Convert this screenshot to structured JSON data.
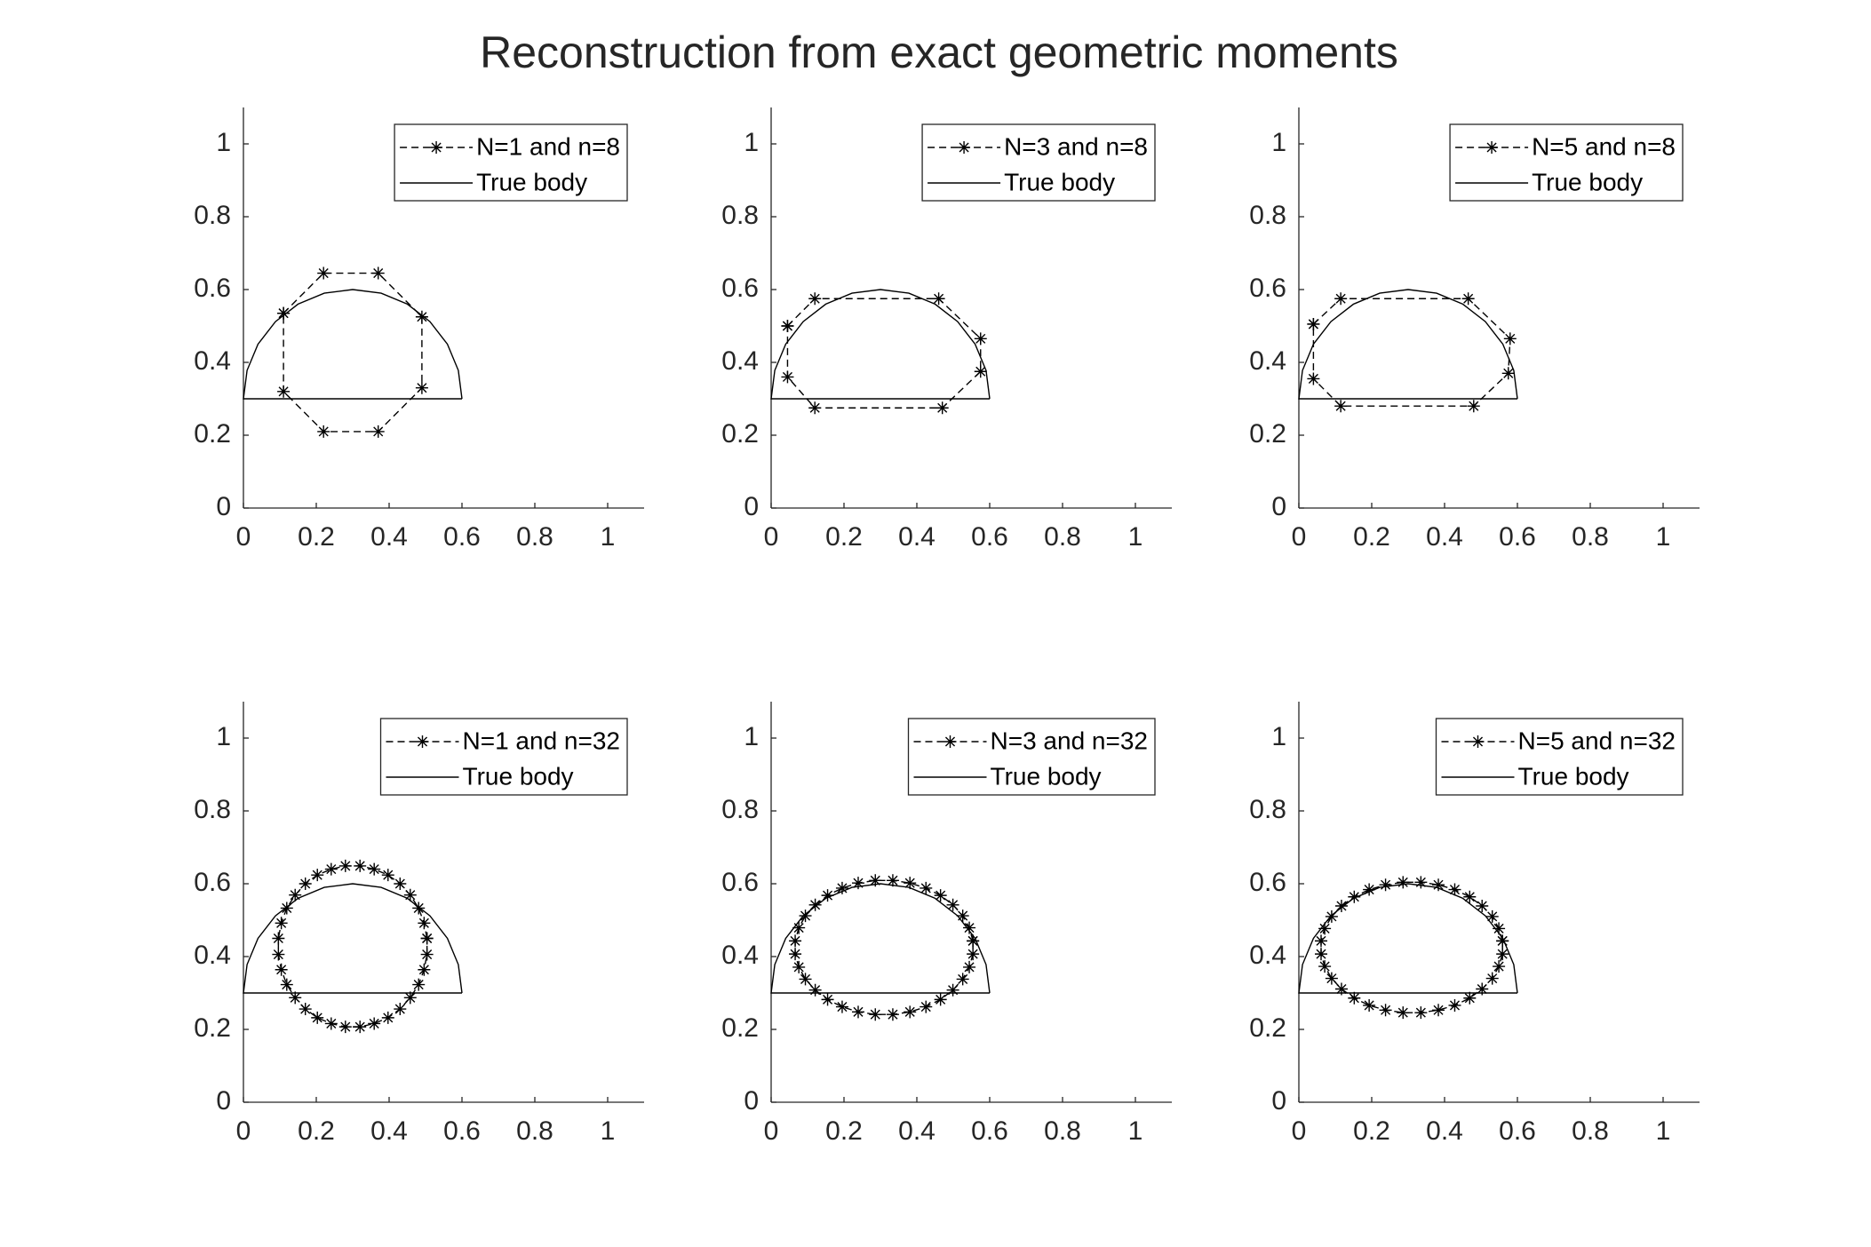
{
  "title": "Reconstruction from exact geometric moments",
  "chart_data": [
    {
      "type": "line",
      "xlim": [
        0,
        1.1
      ],
      "ylim": [
        0,
        1.1
      ],
      "xticks": [
        0,
        0.2,
        0.4,
        0.6,
        0.8,
        1
      ],
      "yticks": [
        0,
        0.2,
        0.4,
        0.6,
        0.8,
        1
      ],
      "legend": "northeast",
      "series": [
        {
          "name": "N=1 and n=8",
          "color": "#000000",
          "linestyle": "dashed",
          "marker": "*",
          "x": [
            0.11,
            0.22,
            0.37,
            0.49,
            0.49,
            0.37,
            0.22,
            0.11,
            0.11
          ],
          "y": [
            0.535,
            0.645,
            0.645,
            0.525,
            0.33,
            0.21,
            0.21,
            0.32,
            0.535
          ]
        },
        {
          "name": "True body",
          "color": "#000000",
          "linestyle": "solid",
          "x": [
            0.6,
            0.59,
            0.56,
            0.512,
            0.45,
            0.378,
            0.3,
            0.222,
            0.15,
            0.088,
            0.04,
            0.01,
            0,
            0.6
          ],
          "y": [
            0.3,
            0.378,
            0.45,
            0.512,
            0.56,
            0.59,
            0.6,
            0.59,
            0.56,
            0.512,
            0.45,
            0.378,
            0.3,
            0.3
          ]
        }
      ]
    },
    {
      "type": "line",
      "xlim": [
        0,
        1.1
      ],
      "ylim": [
        0,
        1.1
      ],
      "xticks": [
        0,
        0.2,
        0.4,
        0.6,
        0.8,
        1
      ],
      "yticks": [
        0,
        0.2,
        0.4,
        0.6,
        0.8,
        1
      ],
      "legend": "northeast",
      "series": [
        {
          "name": "N=3 and n=8",
          "color": "#000000",
          "linestyle": "dashed",
          "marker": "*",
          "x": [
            0.045,
            0.12,
            0.46,
            0.575,
            0.575,
            0.47,
            0.12,
            0.045,
            0.045
          ],
          "y": [
            0.5,
            0.575,
            0.575,
            0.465,
            0.375,
            0.275,
            0.275,
            0.36,
            0.5
          ]
        },
        {
          "name": "True body",
          "color": "#000000",
          "linestyle": "solid",
          "x": [
            0.6,
            0.59,
            0.56,
            0.512,
            0.45,
            0.378,
            0.3,
            0.222,
            0.15,
            0.088,
            0.04,
            0.01,
            0,
            0.6
          ],
          "y": [
            0.3,
            0.378,
            0.45,
            0.512,
            0.56,
            0.59,
            0.6,
            0.59,
            0.56,
            0.512,
            0.45,
            0.378,
            0.3,
            0.3
          ]
        }
      ]
    },
    {
      "type": "line",
      "xlim": [
        0,
        1.1
      ],
      "ylim": [
        0,
        1.1
      ],
      "xticks": [
        0,
        0.2,
        0.4,
        0.6,
        0.8,
        1
      ],
      "yticks": [
        0,
        0.2,
        0.4,
        0.6,
        0.8,
        1
      ],
      "legend": "northeast",
      "series": [
        {
          "name": "N=5 and n=8",
          "color": "#000000",
          "linestyle": "dashed",
          "marker": "*",
          "x": [
            0.04,
            0.115,
            0.465,
            0.58,
            0.575,
            0.48,
            0.115,
            0.04,
            0.04
          ],
          "y": [
            0.505,
            0.575,
            0.575,
            0.465,
            0.37,
            0.28,
            0.28,
            0.355,
            0.505
          ]
        },
        {
          "name": "True body",
          "color": "#000000",
          "linestyle": "solid",
          "x": [
            0.6,
            0.59,
            0.56,
            0.512,
            0.45,
            0.378,
            0.3,
            0.222,
            0.15,
            0.088,
            0.04,
            0.01,
            0,
            0.6
          ],
          "y": [
            0.3,
            0.378,
            0.45,
            0.512,
            0.56,
            0.59,
            0.6,
            0.59,
            0.56,
            0.512,
            0.45,
            0.378,
            0.3,
            0.3
          ]
        }
      ]
    },
    {
      "type": "line",
      "xlim": [
        0,
        1.1
      ],
      "ylim": [
        0,
        1.1
      ],
      "xticks": [
        0,
        0.2,
        0.4,
        0.6,
        0.8,
        1
      ],
      "yticks": [
        0,
        0.2,
        0.4,
        0.6,
        0.8,
        1
      ],
      "legend": "northeast",
      "series": [
        {
          "name": "N=1 and n=32",
          "color": "#000000",
          "linestyle": "dashed",
          "marker": "*",
          "x": [
            0.504,
            0.496,
            0.481,
            0.458,
            0.43,
            0.397,
            0.359,
            0.32,
            0.28,
            0.241,
            0.203,
            0.17,
            0.142,
            0.119,
            0.104,
            0.096,
            0.096,
            0.104,
            0.119,
            0.142,
            0.17,
            0.203,
            0.241,
            0.28,
            0.32,
            0.359,
            0.397,
            0.43,
            0.458,
            0.481,
            0.496,
            0.504,
            0.504
          ],
          "y": [
            0.45,
            0.492,
            0.533,
            0.569,
            0.6,
            0.624,
            0.64,
            0.649,
            0.649,
            0.64,
            0.624,
            0.6,
            0.569,
            0.533,
            0.492,
            0.45,
            0.406,
            0.364,
            0.323,
            0.287,
            0.256,
            0.232,
            0.216,
            0.207,
            0.207,
            0.216,
            0.232,
            0.256,
            0.287,
            0.323,
            0.364,
            0.406,
            0.45
          ]
        },
        {
          "name": "True body",
          "color": "#000000",
          "linestyle": "solid",
          "x": [
            0.6,
            0.59,
            0.56,
            0.512,
            0.45,
            0.378,
            0.3,
            0.222,
            0.15,
            0.088,
            0.04,
            0.01,
            0,
            0.6
          ],
          "y": [
            0.3,
            0.378,
            0.45,
            0.512,
            0.56,
            0.59,
            0.6,
            0.59,
            0.56,
            0.512,
            0.45,
            0.378,
            0.3,
            0.3
          ]
        }
      ]
    },
    {
      "type": "line",
      "xlim": [
        0,
        1.1
      ],
      "ylim": [
        0,
        1.1
      ],
      "xticks": [
        0,
        0.2,
        0.4,
        0.6,
        0.8,
        1
      ],
      "yticks": [
        0,
        0.2,
        0.4,
        0.6,
        0.8,
        1
      ],
      "legend": "northeast",
      "series": [
        {
          "name": "N=3 and n=32",
          "color": "#000000",
          "linestyle": "dashed",
          "marker": "*",
          "x": [
            0.554,
            0.544,
            0.526,
            0.499,
            0.465,
            0.425,
            0.381,
            0.334,
            0.286,
            0.239,
            0.195,
            0.155,
            0.121,
            0.094,
            0.076,
            0.066,
            0.066,
            0.076,
            0.094,
            0.121,
            0.155,
            0.195,
            0.239,
            0.286,
            0.334,
            0.381,
            0.425,
            0.465,
            0.499,
            0.526,
            0.544,
            0.554,
            0.554
          ],
          "y": [
            0.443,
            0.479,
            0.512,
            0.542,
            0.568,
            0.588,
            0.602,
            0.609,
            0.609,
            0.602,
            0.588,
            0.568,
            0.542,
            0.512,
            0.479,
            0.443,
            0.407,
            0.371,
            0.338,
            0.308,
            0.282,
            0.262,
            0.248,
            0.241,
            0.241,
            0.248,
            0.262,
            0.282,
            0.308,
            0.338,
            0.371,
            0.407,
            0.443
          ]
        },
        {
          "name": "True body",
          "color": "#000000",
          "linestyle": "solid",
          "x": [
            0.6,
            0.59,
            0.56,
            0.512,
            0.45,
            0.378,
            0.3,
            0.222,
            0.15,
            0.088,
            0.04,
            0.01,
            0,
            0.6
          ],
          "y": [
            0.3,
            0.378,
            0.45,
            0.512,
            0.56,
            0.59,
            0.6,
            0.59,
            0.56,
            0.512,
            0.45,
            0.378,
            0.3,
            0.3
          ]
        }
      ]
    },
    {
      "type": "line",
      "xlim": [
        0,
        1.1
      ],
      "ylim": [
        0,
        1.1
      ],
      "xticks": [
        0,
        0.2,
        0.4,
        0.6,
        0.8,
        1
      ],
      "yticks": [
        0,
        0.2,
        0.4,
        0.6,
        0.8,
        1
      ],
      "legend": "northeast",
      "series": [
        {
          "name": "N=5 and n=32",
          "color": "#000000",
          "linestyle": "dashed",
          "marker": "*",
          "x": [
            0.559,
            0.549,
            0.531,
            0.503,
            0.469,
            0.428,
            0.383,
            0.335,
            0.286,
            0.238,
            0.193,
            0.152,
            0.117,
            0.09,
            0.071,
            0.061,
            0.061,
            0.071,
            0.09,
            0.117,
            0.152,
            0.193,
            0.238,
            0.286,
            0.335,
            0.383,
            0.428,
            0.469,
            0.503,
            0.531,
            0.549,
            0.559,
            0.559
          ],
          "y": [
            0.443,
            0.477,
            0.51,
            0.539,
            0.564,
            0.584,
            0.597,
            0.604,
            0.604,
            0.597,
            0.584,
            0.564,
            0.539,
            0.51,
            0.477,
            0.443,
            0.407,
            0.373,
            0.34,
            0.311,
            0.286,
            0.266,
            0.253,
            0.246,
            0.246,
            0.253,
            0.266,
            0.286,
            0.311,
            0.34,
            0.373,
            0.407,
            0.443
          ]
        },
        {
          "name": "True body",
          "color": "#000000",
          "linestyle": "solid",
          "x": [
            0.6,
            0.59,
            0.56,
            0.512,
            0.45,
            0.378,
            0.3,
            0.222,
            0.15,
            0.088,
            0.04,
            0.01,
            0,
            0.6
          ],
          "y": [
            0.3,
            0.378,
            0.45,
            0.512,
            0.56,
            0.59,
            0.6,
            0.59,
            0.56,
            0.512,
            0.45,
            0.378,
            0.3,
            0.3
          ]
        }
      ]
    }
  ]
}
